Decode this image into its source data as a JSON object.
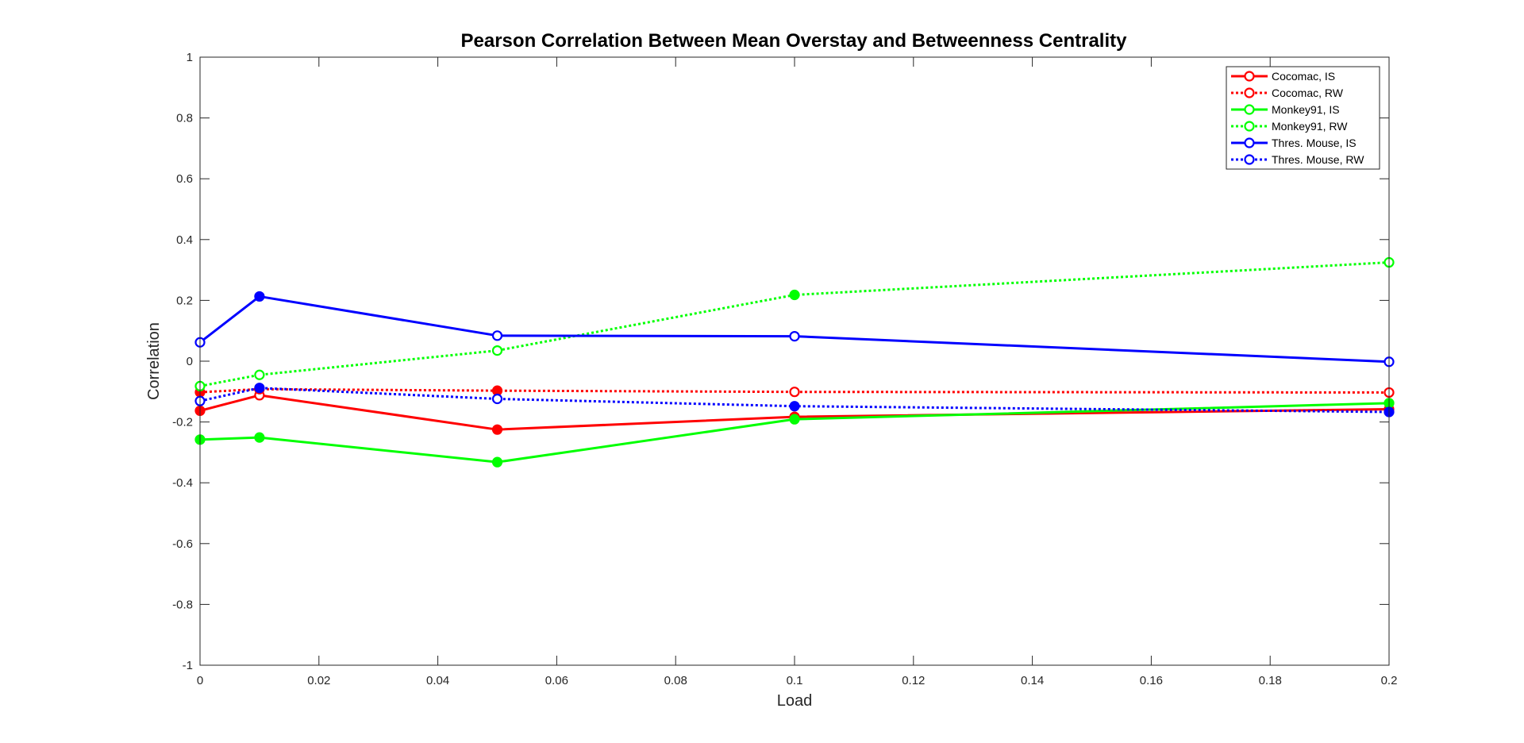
{
  "chart_data": {
    "type": "line",
    "title": "Pearson Correlation Between Mean Overstay and Betweenness Centrality",
    "xlabel": "Load",
    "ylabel": "Correlation",
    "xlim": [
      0,
      0.2
    ],
    "ylim": [
      -1,
      1
    ],
    "x_ticks": [
      "0",
      "0.02",
      "0.04",
      "0.06",
      "0.08",
      "0.1",
      "0.12",
      "0.14",
      "0.16",
      "0.18",
      "0.2"
    ],
    "y_ticks": [
      "-1",
      "-0.8",
      "-0.6",
      "-0.4",
      "-0.2",
      "0",
      "0.2",
      "0.4",
      "0.6",
      "0.8",
      "1"
    ],
    "x": [
      0,
      0.01,
      0.05,
      0.1,
      0.2
    ],
    "grid": false,
    "legend_position": "top-right",
    "series": [
      {
        "name": "Cocomac, IS",
        "color": "#ff0000",
        "style": "solid",
        "values": [
          -0.163,
          -0.112,
          -0.225,
          -0.183,
          -0.158
        ],
        "filled": [
          true,
          false,
          true,
          true,
          true
        ]
      },
      {
        "name": "Cocomac, RW",
        "color": "#ff0000",
        "style": "dotted",
        "values": [
          -0.102,
          -0.092,
          -0.097,
          -0.101,
          -0.103
        ],
        "filled": [
          true,
          false,
          true,
          false,
          false
        ]
      },
      {
        "name": "Monkey91, IS",
        "color": "#00ff00",
        "style": "solid",
        "values": [
          -0.258,
          -0.251,
          -0.332,
          -0.191,
          -0.138
        ],
        "filled": [
          true,
          true,
          true,
          true,
          true
        ]
      },
      {
        "name": "Monkey91, RW",
        "color": "#00ff00",
        "style": "dotted",
        "values": [
          -0.082,
          -0.045,
          0.035,
          0.218,
          0.325
        ],
        "filled": [
          false,
          false,
          false,
          true,
          false
        ]
      },
      {
        "name": "Thres. Mouse, IS",
        "color": "#0000ff",
        "style": "solid",
        "values": [
          0.062,
          0.213,
          0.084,
          0.082,
          -0.002
        ],
        "filled": [
          false,
          true,
          false,
          false,
          false
        ]
      },
      {
        "name": "Thres. Mouse, RW",
        "color": "#0000ff",
        "style": "dotted",
        "values": [
          -0.131,
          -0.088,
          -0.124,
          -0.148,
          -0.167
        ],
        "filled": [
          false,
          true,
          false,
          true,
          true
        ]
      }
    ]
  }
}
